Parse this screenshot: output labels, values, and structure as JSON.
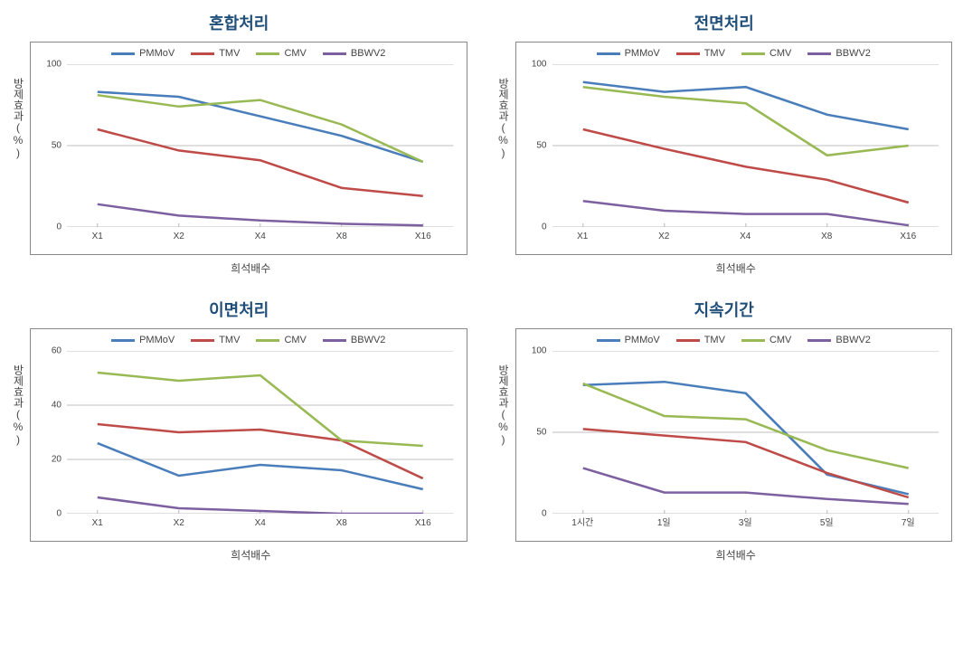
{
  "colors": {
    "PMMoV": "#4a7ebb",
    "TMV": "#be4b48",
    "CMV": "#98b954",
    "BBWV2": "#7d60a0",
    "grid": "#bfbfbf",
    "border": "#888888",
    "title": "#1f4e79",
    "text": "#444444",
    "bg": "#ffffff"
  },
  "charts": [
    {
      "id": "chart-1",
      "title": "혼합처리",
      "xlabel": "희석배수",
      "ylabel": "방제효과(%)",
      "categories": [
        "X1",
        "X2",
        "X4",
        "X8",
        "X16"
      ],
      "ymin": 0,
      "ymax": 100,
      "ystep": 50,
      "title_fontsize": 18,
      "series": [
        {
          "name": "PMMoV",
          "color": "#4a7ebb",
          "values": [
            83,
            80,
            68,
            56,
            40
          ]
        },
        {
          "name": "TMV",
          "color": "#be4b48",
          "values": [
            60,
            47,
            41,
            24,
            19
          ]
        },
        {
          "name": "CMV",
          "color": "#98b954",
          "values": [
            81,
            74,
            78,
            63,
            40
          ]
        },
        {
          "name": "BBWV2",
          "color": "#7d60a0",
          "values": [
            14,
            7,
            4,
            2,
            1
          ]
        }
      ]
    },
    {
      "id": "chart-2",
      "title": "전면처리",
      "xlabel": "희석배수",
      "ylabel": "방제효과(%)",
      "categories": [
        "X1",
        "X2",
        "X4",
        "X8",
        "X16"
      ],
      "ymin": 0,
      "ymax": 100,
      "ystep": 50,
      "title_fontsize": 18,
      "series": [
        {
          "name": "PMMoV",
          "color": "#4a7ebb",
          "values": [
            89,
            83,
            86,
            69,
            60
          ]
        },
        {
          "name": "TMV",
          "color": "#be4b48",
          "values": [
            60,
            48,
            37,
            29,
            15
          ]
        },
        {
          "name": "CMV",
          "color": "#98b954",
          "values": [
            86,
            80,
            76,
            44,
            50
          ]
        },
        {
          "name": "BBWV2",
          "color": "#7d60a0",
          "values": [
            16,
            10,
            8,
            8,
            1
          ]
        }
      ]
    },
    {
      "id": "chart-3",
      "title": "이면처리",
      "xlabel": "희석배수",
      "ylabel": "방제효과(%)",
      "categories": [
        "X1",
        "X2",
        "X4",
        "X8",
        "X16"
      ],
      "ymin": 0,
      "ymax": 60,
      "ystep": 20,
      "title_fontsize": 18,
      "series": [
        {
          "name": "PMMoV",
          "color": "#4a7ebb",
          "values": [
            26,
            14,
            18,
            16,
            9
          ]
        },
        {
          "name": "TMV",
          "color": "#be4b48",
          "values": [
            33,
            30,
            31,
            27,
            13
          ]
        },
        {
          "name": "CMV",
          "color": "#98b954",
          "values": [
            52,
            49,
            51,
            27,
            25
          ]
        },
        {
          "name": "BBWV2",
          "color": "#7d60a0",
          "values": [
            6,
            2,
            1,
            0,
            0
          ]
        }
      ]
    },
    {
      "id": "chart-4",
      "title": "지속기간",
      "xlabel": "희석배수",
      "ylabel": "방제효과(%)",
      "categories": [
        "1시간",
        "1일",
        "3일",
        "5일",
        "7일"
      ],
      "ymin": 0,
      "ymax": 100,
      "ystep": 50,
      "title_fontsize": 18,
      "series": [
        {
          "name": "PMMoV",
          "color": "#4a7ebb",
          "values": [
            79,
            81,
            74,
            24,
            12
          ]
        },
        {
          "name": "TMV",
          "color": "#be4b48",
          "values": [
            52,
            48,
            44,
            25,
            10
          ]
        },
        {
          "name": "CMV",
          "color": "#98b954",
          "values": [
            80,
            60,
            58,
            39,
            28
          ]
        },
        {
          "name": "BBWV2",
          "color": "#7d60a0",
          "values": [
            28,
            13,
            13,
            9,
            6
          ]
        }
      ]
    }
  ]
}
